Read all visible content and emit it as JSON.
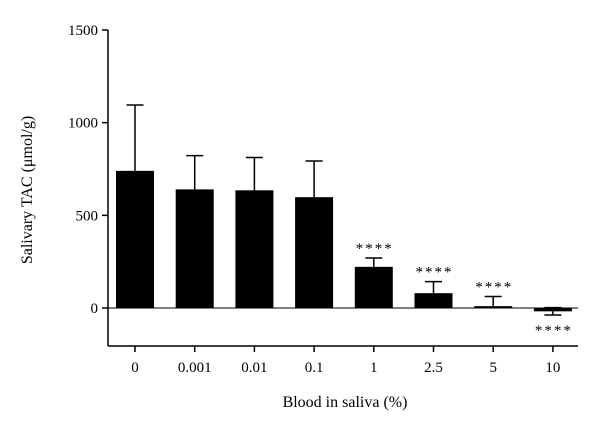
{
  "chart_data": {
    "type": "bar",
    "xlabel": "Blood in saliva (%)",
    "ylabel": "Salivary TAC (μmol/g)",
    "ylim": [
      -200,
      1500
    ],
    "yticks": [
      0,
      500,
      1000,
      1500
    ],
    "yticks_display": [
      "0",
      "500",
      "1000",
      "1500"
    ],
    "categories": [
      "0",
      "0.001",
      "0.01",
      "0.1",
      "1",
      "2.5",
      "5",
      "10"
    ],
    "values": [
      740,
      640,
      635,
      598,
      222,
      80,
      10,
      -18
    ],
    "error_plus": [
      355,
      182,
      177,
      195,
      48,
      62,
      52,
      20
    ],
    "error_minus": [
      0,
      0,
      0,
      0,
      0,
      0,
      0,
      20
    ],
    "annotations": [
      "",
      "",
      "",
      "",
      "****",
      "****",
      "****",
      "****"
    ],
    "annotation_position": [
      "",
      "",
      "",
      "",
      "above",
      "above",
      "above",
      "below"
    ],
    "bar_color": "#000000",
    "grid": false,
    "legend": "none"
  }
}
